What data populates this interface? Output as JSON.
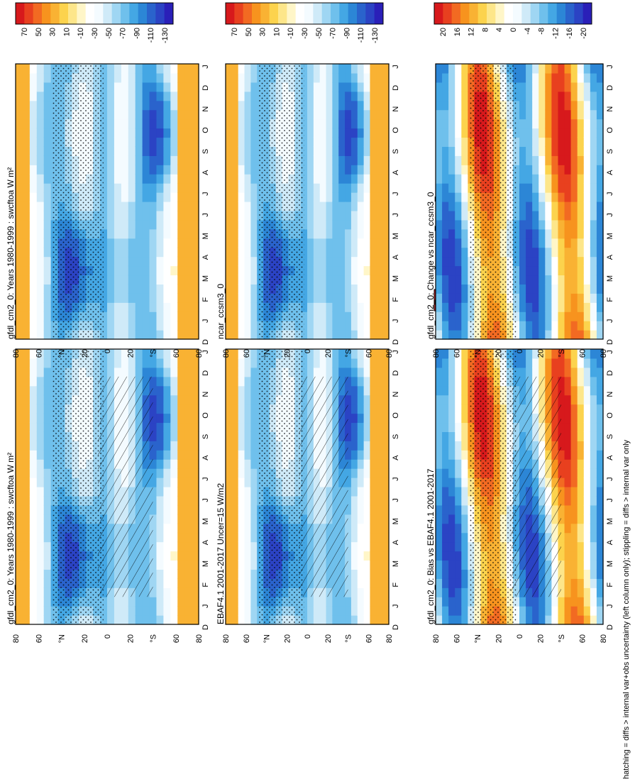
{
  "figure": {
    "footnote": "hatching = diffs > internal var+obs uncertainty (left column only); stippling = diffs > internal var only"
  },
  "chart_data": [
    {
      "type": "heatmap",
      "panel": "model-left",
      "title": "gfdl_cm2_0: Years 1980-1999 : swcftoa W m²",
      "x_ticks": [
        "D",
        "J",
        "F",
        "M",
        "A",
        "M",
        "J",
        "J",
        "A",
        "S",
        "O",
        "N",
        "D",
        "J"
      ],
      "y_ticks": [
        "80",
        "60",
        "°N",
        "20",
        "0",
        "20",
        "°S",
        "60",
        "80"
      ],
      "colorbar": [
        "70",
        "50",
        "30",
        "10",
        "-10",
        "-30",
        "-50",
        "-70",
        "-90",
        "-110",
        "-130"
      ]
    },
    {
      "type": "heatmap",
      "panel": "obs",
      "title": "EBAF4.1 2001-2017 Uncer=15 W/m2",
      "x_ticks": [
        "D",
        "J",
        "F",
        "M",
        "A",
        "M",
        "J",
        "J",
        "A",
        "S",
        "O",
        "N",
        "D",
        "J"
      ],
      "y_ticks": [
        "80",
        "60",
        "°N",
        "20",
        "0",
        "20",
        "°S",
        "60",
        "80"
      ],
      "colorbar": [
        "70",
        "50",
        "30",
        "10",
        "-10",
        "-30",
        "-50",
        "-70",
        "-90",
        "-110",
        "-130"
      ]
    },
    {
      "type": "heatmap",
      "panel": "bias",
      "title": "gfdl_cm2_0: Bias vs EBAF4.1 2001-2017",
      "x_ticks": [
        "D",
        "J",
        "F",
        "M",
        "A",
        "M",
        "J",
        "J",
        "A",
        "S",
        "O",
        "N",
        "D",
        "J"
      ],
      "y_ticks": [
        "80",
        "60",
        "°N",
        "20",
        "0",
        "20",
        "°S",
        "60",
        "80"
      ],
      "colorbar": [
        "20",
        "16",
        "12",
        "8",
        "4",
        "0",
        "-4",
        "-8",
        "-12",
        "-16",
        "-20"
      ]
    },
    {
      "type": "heatmap",
      "panel": "model-right",
      "title": "gfdl_cm2_0: Years 1980-1999 : swcftoa W m²",
      "x_ticks": [
        "D",
        "J",
        "F",
        "M",
        "A",
        "M",
        "J",
        "J",
        "A",
        "S",
        "O",
        "N",
        "D",
        "J"
      ],
      "y_ticks": [
        "80",
        "60",
        "°N",
        "20",
        "0",
        "20",
        "°S",
        "60",
        "80"
      ],
      "colorbar": [
        "70",
        "50",
        "30",
        "10",
        "-10",
        "-30",
        "-50",
        "-70",
        "-90",
        "-110",
        "-130"
      ]
    },
    {
      "type": "heatmap",
      "panel": "ref",
      "title": "ncar_ccsm3_0",
      "x_ticks": [
        "D",
        "J",
        "F",
        "M",
        "A",
        "M",
        "J",
        "J",
        "A",
        "S",
        "O",
        "N",
        "D",
        "J"
      ],
      "y_ticks": [
        "80",
        "60",
        "°N",
        "20",
        "0",
        "20",
        "°S",
        "60",
        "80"
      ],
      "colorbar": [
        "70",
        "50",
        "30",
        "10",
        "-10",
        "-30",
        "-50",
        "-70",
        "-90",
        "-110",
        "-130"
      ]
    },
    {
      "type": "heatmap",
      "panel": "change",
      "title": "gfdl_cm2_0: Change vs ncar_ccsm3_0",
      "x_ticks": [
        "D",
        "J",
        "F",
        "M",
        "A",
        "M",
        "J",
        "J",
        "A",
        "S",
        "O",
        "N",
        "D",
        "J"
      ],
      "y_ticks": [
        "80",
        "60",
        "°N",
        "20",
        "0",
        "20",
        "°S",
        "60",
        "80"
      ],
      "colorbar": [
        "20",
        "16",
        "12",
        "8",
        "4",
        "0",
        "-4",
        "-8",
        "-12",
        "-16",
        "-20"
      ]
    }
  ],
  "colors": {
    "scale": [
      "#d7191c",
      "#e8401f",
      "#f26a22",
      "#f7931e",
      "#f9b233",
      "#fcd34d",
      "#fde68a",
      "#fff6c8",
      "#ffffff",
      "#f4fbff",
      "#cfeaf8",
      "#9fd6f3",
      "#6fc0ec",
      "#44a7e4",
      "#2c86d6",
      "#2a63cc",
      "#2b43c4",
      "#2a1fb8"
    ],
    "frame": "#000000"
  }
}
